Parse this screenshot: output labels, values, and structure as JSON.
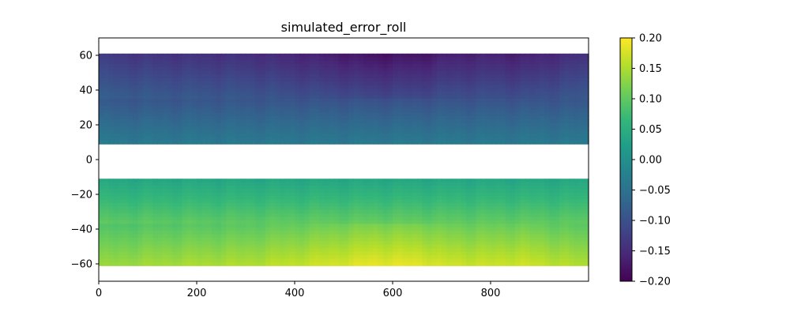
{
  "chart_data": {
    "type": "heatmap",
    "title": "simulated_error_roll",
    "xlim": [
      0,
      1000
    ],
    "ylim": [
      -70,
      70
    ],
    "x_ticks": [
      0,
      200,
      400,
      600,
      800
    ],
    "x_tick_labels": [
      "0",
      "200",
      "400",
      "600",
      "800"
    ],
    "y_ticks": [
      60,
      40,
      20,
      0,
      -20,
      -40,
      -60
    ],
    "y_tick_labels": [
      "60",
      "40",
      "20",
      "0",
      "−20",
      "−40",
      "−60"
    ],
    "colormap": "viridis",
    "colorbar": {
      "range": [
        -0.2,
        0.2
      ],
      "ticks": [
        0.2,
        0.15,
        0.1,
        0.05,
        0.0,
        -0.05,
        -0.1,
        -0.15,
        -0.2
      ],
      "tick_labels": [
        "0.20",
        "0.15",
        "0.10",
        "0.05",
        "0.00",
        "−0.05",
        "−0.10",
        "−0.15",
        "−0.20"
      ]
    },
    "bands": [
      {
        "y_range": [
          9,
          61
        ],
        "x_range": [
          0,
          1000
        ],
        "value_top": -0.16,
        "value_bottom": -0.035
      },
      {
        "y_range": [
          -61,
          -11
        ],
        "x_range": [
          0,
          1000
        ],
        "value_top": 0.035,
        "value_bottom": 0.165
      }
    ],
    "x_profile": {
      "x": [
        0,
        100,
        200,
        300,
        400,
        500,
        560,
        600,
        660,
        700,
        800,
        860,
        1000
      ],
      "factor": [
        0.82,
        0.87,
        0.9,
        0.92,
        1.0,
        1.08,
        1.14,
        1.13,
        1.12,
        1.05,
        1.02,
        1.05,
        0.9
      ]
    }
  },
  "colors": {
    "viridis": [
      "#440154",
      "#482878",
      "#3e4989",
      "#31688e",
      "#26828e",
      "#1f9e89",
      "#35b779",
      "#6ece58",
      "#b5de2b",
      "#fde725"
    ]
  }
}
